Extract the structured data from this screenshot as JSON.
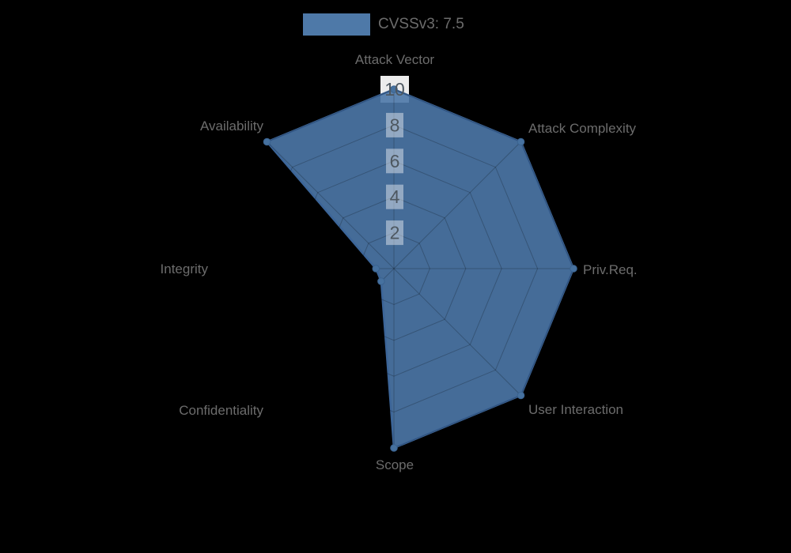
{
  "legend": {
    "label": "CVSSv3: 7.5",
    "swatch_color": "#4e79a8"
  },
  "chart_data": {
    "type": "radar",
    "title": "",
    "axes": [
      "Attack Vector",
      "Attack Complexity",
      "Priv.Req.",
      "User Interaction",
      "Scope",
      "Confidentiality",
      "Integrity",
      "Availability"
    ],
    "series": [
      {
        "name": "CVSSv3: 7.5",
        "values": [
          10,
          10,
          10,
          10,
          10,
          1,
          1,
          10
        ]
      }
    ],
    "scale": {
      "min": 0,
      "max": 10,
      "ticks": [
        2,
        4,
        6,
        8,
        10
      ]
    },
    "legend_position": "top",
    "grid": true,
    "colors": {
      "background": "#000000",
      "series_fill": "rgba(77,120,168,0.9)",
      "series_border": "#3c6598",
      "point_fill": "#46719f",
      "point_border": "#3a628f",
      "grid_line": "rgba(0,0,0,0.22)",
      "tick_text": "#4d5760",
      "tick_backdrop": "rgba(255,255,255,0.42)",
      "tick_backdrop_outer": "#ececec",
      "axis_label": "#6c6c6c",
      "legend_text": "#6c6c6c",
      "legend_swatch": "#4e79a8"
    }
  }
}
